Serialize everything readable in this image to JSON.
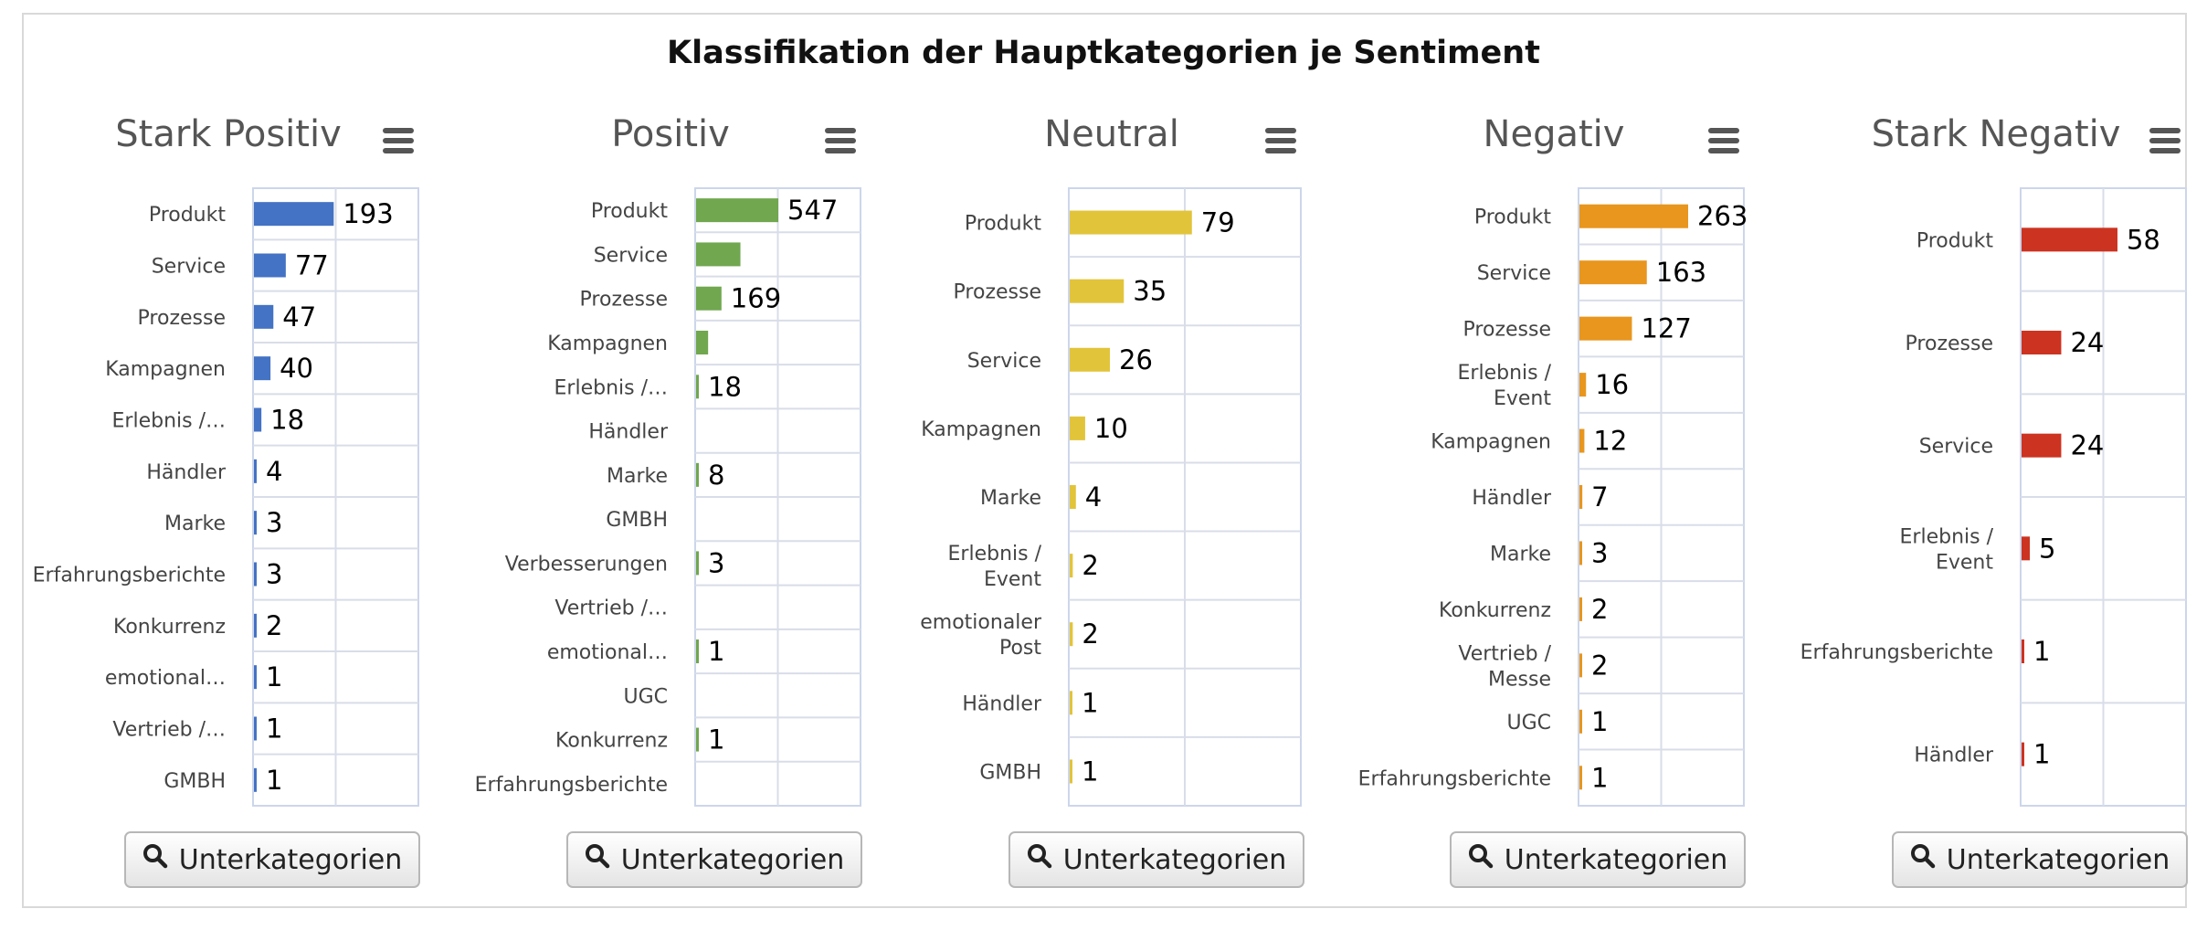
{
  "page_title": "Klassifikation der Hauptkategorien je Sentiment",
  "button_label": "Unterkategorien",
  "menu_icon": "hamburger-menu-icon",
  "search_icon": "magnifier-icon",
  "chart_data": [
    {
      "type": "bar",
      "orientation": "horizontal",
      "title": "Stark Positiv",
      "color": "#4472c4",
      "xlim": [
        0,
        400
      ],
      "grid": true,
      "categories": [
        "Produkt",
        "Service",
        "Prozesse",
        "Kampagnen",
        "Erlebnis /…",
        "Händler",
        "Marke",
        "Erfahrungsberichte",
        "Konkurrenz",
        "emotional…",
        "Vertrieb /…",
        "GMBH"
      ],
      "values": [
        193,
        77,
        47,
        40,
        18,
        4,
        3,
        3,
        2,
        1,
        1,
        1
      ],
      "data_labels": [
        "193",
        "77",
        "47",
        "40",
        "18",
        "4",
        "3",
        "3",
        "2",
        "1",
        "1",
        "1"
      ]
    },
    {
      "type": "bar",
      "orientation": "horizontal",
      "title": "Positiv",
      "color": "#70a74f",
      "xlim": [
        0,
        1100
      ],
      "grid": true,
      "categories": [
        "Produkt",
        "Service",
        "Prozesse",
        "Kampagnen",
        "Erlebnis /…",
        "Händler",
        "Marke",
        "GMBH",
        "Verbesserungen",
        "Vertrieb /…",
        "emotional…",
        "UGC",
        "Konkurrenz",
        "Erfahrungsberichte"
      ],
      "values": [
        547,
        295,
        169,
        80,
        18,
        0,
        8,
        0,
        3,
        0,
        1,
        0,
        1,
        0
      ],
      "data_labels": [
        "547",
        "",
        "169",
        "",
        "18",
        "",
        "8",
        "",
        "3",
        "",
        "1",
        "",
        "1",
        ""
      ]
    },
    {
      "type": "bar",
      "orientation": "horizontal",
      "title": "Neutral",
      "color": "#e2c43a",
      "xlim": [
        0,
        150
      ],
      "grid": true,
      "categories": [
        "Produkt",
        "Prozesse",
        "Service",
        "Kampagnen",
        "Marke",
        "Erlebnis /\nEvent",
        "emotionaler\nPost",
        "Händler",
        "GMBH"
      ],
      "values": [
        79,
        35,
        26,
        10,
        4,
        2,
        2,
        1,
        1
      ],
      "data_labels": [
        "79",
        "35",
        "26",
        "10",
        "4",
        "2",
        "2",
        "1",
        "1"
      ]
    },
    {
      "type": "bar",
      "orientation": "horizontal",
      "title": "Negativ",
      "color": "#e8961e",
      "xlim": [
        0,
        400
      ],
      "grid": true,
      "categories": [
        "Produkt",
        "Service",
        "Prozesse",
        "Erlebnis /\nEvent",
        "Kampagnen",
        "Händler",
        "Marke",
        "Konkurrenz",
        "Vertrieb /\nMesse",
        "UGC",
        "Erfahrungsberichte"
      ],
      "values": [
        263,
        163,
        127,
        16,
        12,
        7,
        3,
        2,
        2,
        1,
        1
      ],
      "data_labels": [
        "263",
        "163",
        "127",
        "16",
        "12",
        "7",
        "3",
        "2",
        "2",
        "1",
        "1"
      ]
    },
    {
      "type": "bar",
      "orientation": "horizontal",
      "title": "Stark Negativ",
      "color": "#cc3321",
      "xlim": [
        0,
        100
      ],
      "grid": true,
      "categories": [
        "Produkt",
        "Prozesse",
        "Service",
        "Erlebnis /\nEvent",
        "Erfahrungsberichte",
        "Händler"
      ],
      "values": [
        58,
        24,
        24,
        5,
        1,
        1
      ],
      "data_labels": [
        "58",
        "24",
        "24",
        "5",
        "1",
        "1"
      ]
    }
  ]
}
